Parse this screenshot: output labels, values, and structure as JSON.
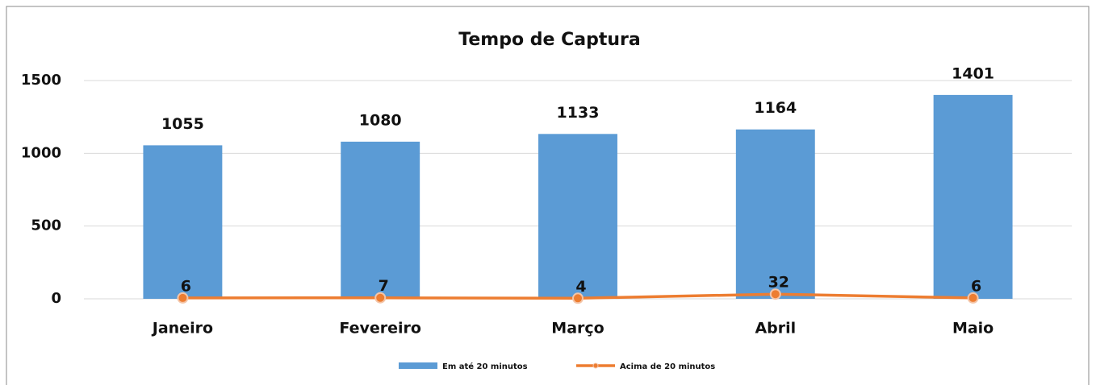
{
  "chart_data": {
    "type": "bar",
    "title": "Tempo de Captura",
    "categories": [
      "Janeiro",
      "Fevereiro",
      "Março",
      "Abril",
      "Maio"
    ],
    "series": [
      {
        "name": "Em até 20 minutos",
        "type": "bar",
        "color": "#5b9bd5",
        "values": [
          1055,
          1080,
          1133,
          1164,
          1401
        ]
      },
      {
        "name": "Acima de 20 minutos",
        "type": "line",
        "color": "#ed7d31",
        "values": [
          6,
          7,
          4,
          32,
          6
        ]
      }
    ],
    "ylim": [
      0,
      1500
    ],
    "yticks": [
      0,
      500,
      1000,
      1500
    ],
    "grid": true,
    "legend": "bottom"
  }
}
